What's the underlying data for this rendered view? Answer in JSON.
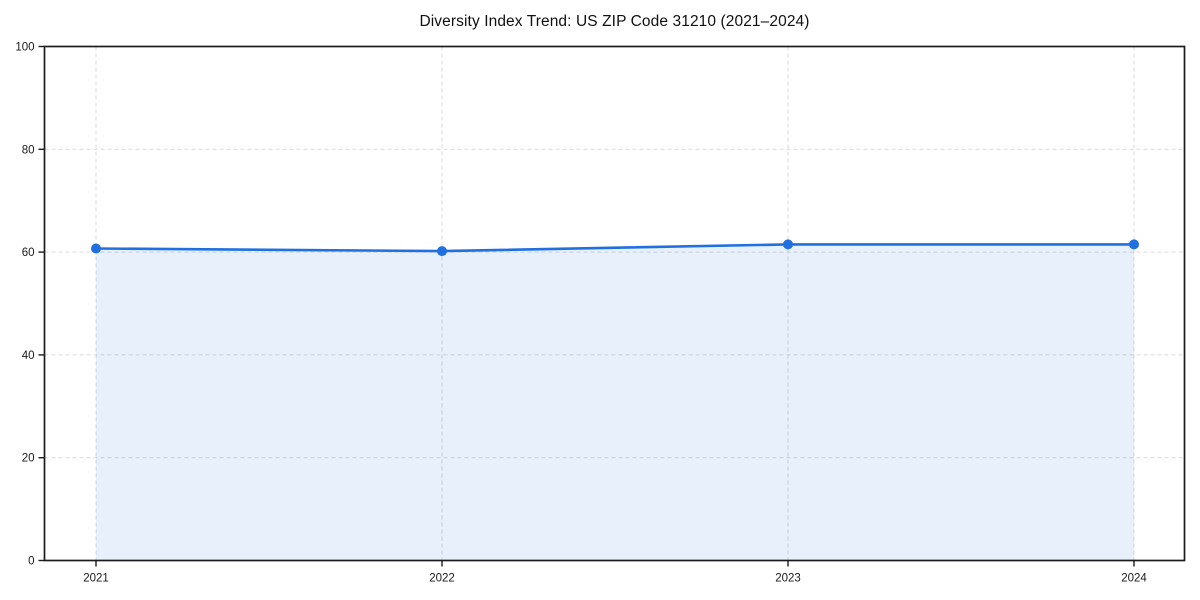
{
  "title": "Diversity Index Trend: US ZIP Code 31210 (2021–2024)",
  "chart_data": {
    "type": "line",
    "title": "Diversity Index Trend: US ZIP Code 31210 (2021–2024)",
    "categories": [
      "2021",
      "2022",
      "2023",
      "2024"
    ],
    "series": [
      {
        "name": "Diversity Index",
        "values": [
          60.7,
          60.2,
          61.5,
          61.5
        ]
      }
    ],
    "xlabel": "",
    "ylabel": "",
    "ylim": [
      0,
      100
    ],
    "yticks": [
      0,
      20,
      40,
      60,
      80,
      100
    ],
    "grid": "dashed both axes",
    "legend": "none",
    "area_fill": true,
    "marker": "circle",
    "line_color": "#2170e0",
    "marker_color": "#2170e0",
    "fill_color": "rgba(33,112,224,0.10)",
    "grid_color": "#d9d9d9",
    "spine_color": "#1c1c1c",
    "tick_label_color": "#1a1a1a",
    "background_color": "#ffffff"
  }
}
